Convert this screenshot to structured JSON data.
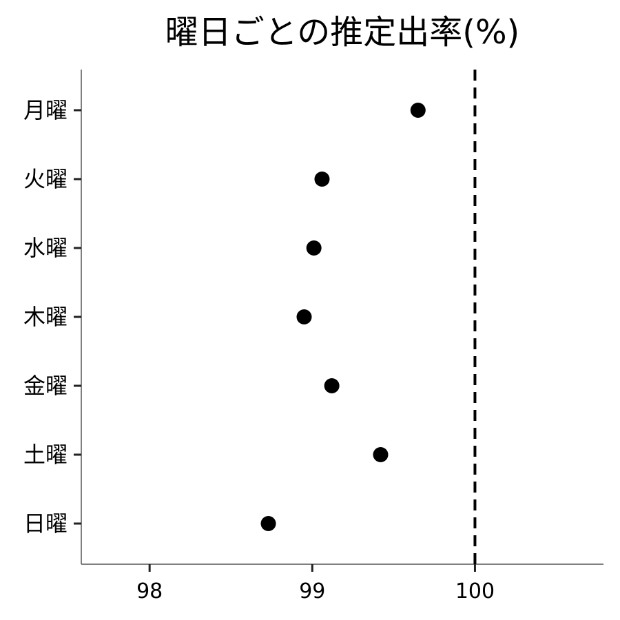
{
  "chart_data": {
    "type": "scatter",
    "title": "曜日ごとの推定出率(%)",
    "xlabel": "",
    "ylabel": "",
    "categories": [
      "月曜",
      "火曜",
      "水曜",
      "木曜",
      "金曜",
      "土曜",
      "日曜"
    ],
    "values": [
      99.65,
      99.06,
      99.01,
      98.95,
      99.12,
      99.42,
      98.73
    ],
    "x_ticks": [
      98,
      99,
      100
    ],
    "x_tick_labels": [
      "98",
      "99",
      "100"
    ],
    "xlim": [
      97.58,
      100.79
    ],
    "reference_line": {
      "x": 100,
      "style": "dashed"
    },
    "grid": false,
    "legend": "none",
    "point_color": "#000000"
  }
}
